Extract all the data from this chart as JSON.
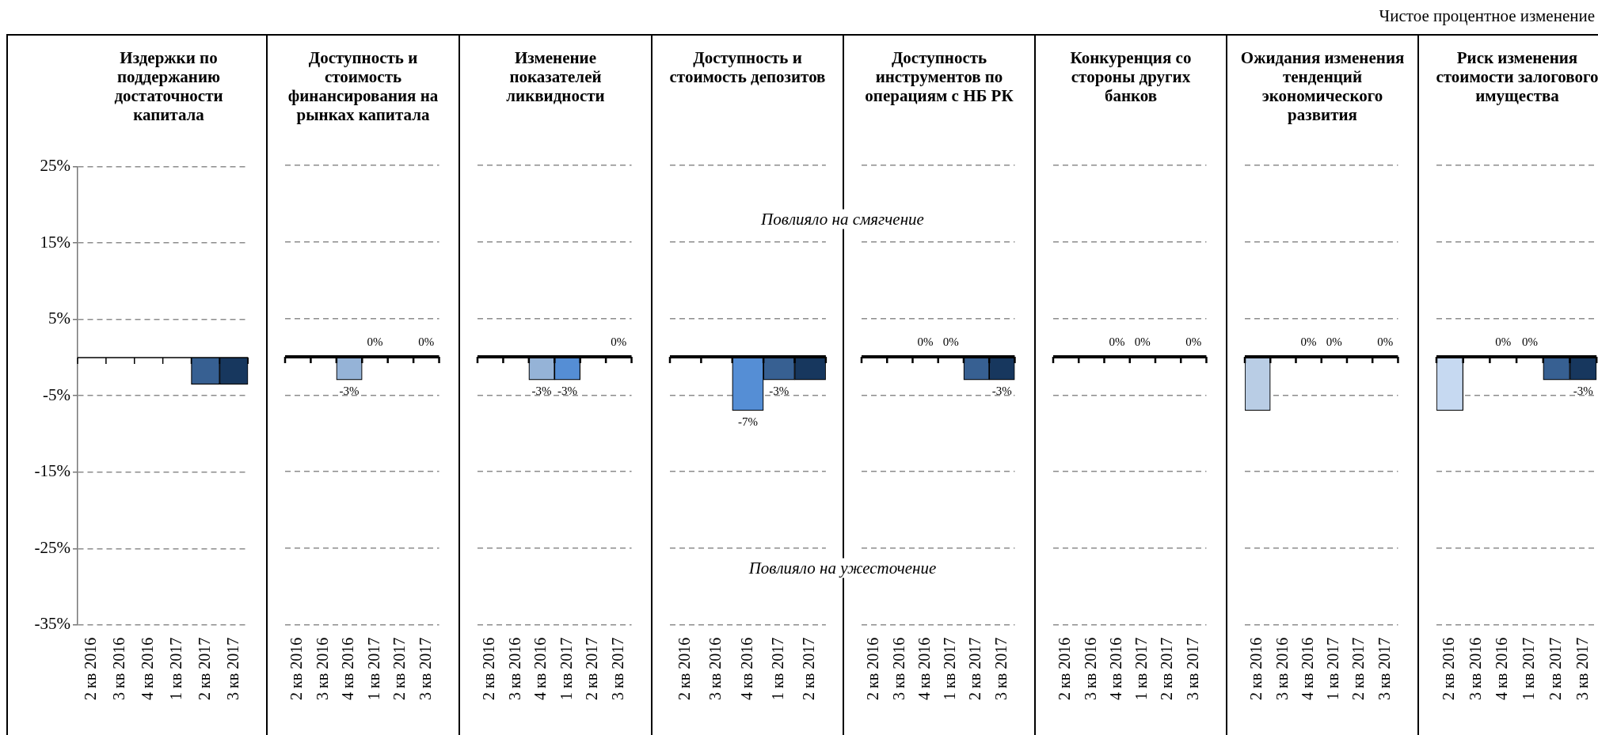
{
  "chart_data": [
    {
      "type": "bar",
      "title": "Издержки по поддержанию достаточности капитала",
      "categories": [
        "2 кв 2016",
        "3 кв 2016",
        "4 кв 2016",
        "1 кв 2017",
        "2 кв 2017",
        "3 кв 2017"
      ],
      "values": [
        0,
        0,
        0,
        0,
        -3.5,
        -3.5
      ],
      "colors": [
        "#c6d9f1",
        "#b9cde5",
        "#95b3d7",
        "#558ed5",
        "#376092",
        "#17375e"
      ],
      "ylim": [
        -35,
        25
      ],
      "yticks": [
        {
          "value": 25,
          "label": "25%"
        },
        {
          "value": 15,
          "label": "15%"
        },
        {
          "value": 5,
          "label": "5%"
        },
        {
          "value": -5,
          "label": "-5%"
        },
        {
          "value": -15,
          "label": "-15%"
        },
        {
          "value": -25,
          "label": "-25%"
        },
        {
          "value": -35,
          "label": "-35%"
        }
      ],
      "grid": "y"
    },
    {
      "type": "bar",
      "title": "Доступность и стоимость финансирования на рынках капитала",
      "categories": [
        "2 кв 2016",
        "3 кв 2016",
        "4 кв 2016",
        "1 кв 2017",
        "2 кв 2017",
        "3 кв 2017"
      ],
      "values": [
        0,
        0,
        -3,
        0,
        0,
        0
      ],
      "value_labels": [
        null,
        null,
        "-3%",
        "0%",
        null,
        "0%"
      ],
      "colors": [
        "#c6d9f1",
        "#b9cde5",
        "#95b3d7",
        "#558ed5",
        "#376092",
        "#17375e"
      ],
      "ylim": [
        -35,
        25
      ],
      "yticks": [
        25,
        15,
        5,
        -5,
        -15,
        -25,
        -35
      ],
      "grid": "y",
      "tick_labels": "x"
    },
    {
      "type": "bar",
      "title": "Изменение показателей ликвидности",
      "categories": [
        "2 кв 2016",
        "3 кв 2016",
        "4 кв 2016",
        "1 кв 2017",
        "2 кв 2017",
        "3 кв 2017"
      ],
      "values": [
        0,
        0,
        -3,
        -3,
        0,
        0
      ],
      "value_labels": [
        null,
        null,
        "-3%",
        "-3%",
        null,
        "0%"
      ],
      "colors": [
        "#c6d9f1",
        "#b9cde5",
        "#95b3d7",
        "#558ed5",
        "#376092",
        "#17375e"
      ],
      "ylim": [
        -35,
        25
      ],
      "yticks": [
        25,
        15,
        5,
        -5,
        -15,
        -25,
        -35
      ],
      "grid": "y",
      "tick_labels": "x"
    },
    {
      "type": "bar",
      "title": "Доступность и стоимость депозитов",
      "categories": [
        "2 кв 2016",
        "3 кв 2016",
        "4 кв 2016",
        "1 кв 2017",
        "2 кв 2017"
      ],
      "values": [
        0,
        0,
        -7,
        -3,
        -3
      ],
      "value_labels": [
        null,
        null,
        "-7%",
        "-3%",
        null
      ],
      "colors": [
        "#c6d9f1",
        "#95b3d7",
        "#558ed5",
        "#376092",
        "#17375e"
      ],
      "ylim": [
        -35,
        25
      ],
      "yticks": [
        25,
        15,
        5,
        -5,
        -15,
        -25,
        -35
      ],
      "grid": "y",
      "tick_labels": "x",
      "annotations": [
        "Повлияло на смягчение",
        "Повлияло на ужесточение"
      ]
    },
    {
      "type": "bar",
      "title": "Доступность инструментов по операциям с НБ РК",
      "categories": [
        "2 кв 2016",
        "3 кв 2016",
        "4 кв 2016",
        "1 кв 2017",
        "2 кв 2017",
        "3 кв 2017"
      ],
      "values": [
        0,
        0,
        0,
        0,
        -3,
        -3
      ],
      "value_labels": [
        null,
        null,
        "0%",
        "0%",
        null,
        "-3%"
      ],
      "colors": [
        "#c6d9f1",
        "#b9cde5",
        "#95b3d7",
        "#558ed5",
        "#376092",
        "#17375e"
      ],
      "ylim": [
        -35,
        25
      ],
      "yticks": [
        25,
        15,
        5,
        -5,
        -15,
        -25,
        -35
      ],
      "grid": "y",
      "tick_labels": "x"
    },
    {
      "type": "bar",
      "title": "Конкуренция со стороны других банков",
      "categories": [
        "2 кв 2016",
        "3 кв 2016",
        "4 кв 2016",
        "1 кв 2017",
        "2 кв 2017",
        "3 кв 2017"
      ],
      "values": [
        0,
        0,
        0,
        0,
        0,
        0
      ],
      "value_labels": [
        null,
        null,
        "0%",
        "0%",
        null,
        "0%"
      ],
      "colors": [
        "#c6d9f1",
        "#b9cde5",
        "#95b3d7",
        "#558ed5",
        "#376092",
        "#17375e"
      ],
      "ylim": [
        -35,
        25
      ],
      "yticks": [
        25,
        15,
        5,
        -5,
        -15,
        -25,
        -35
      ],
      "grid": "y",
      "tick_labels": "x"
    },
    {
      "type": "bar",
      "title": "Ожидания изменения тенденций экономического развития",
      "categories": [
        "2 кв 2016",
        "3 кв 2016",
        "4 кв 2016",
        "1 кв 2017",
        "2 кв 2017",
        "3 кв 2017"
      ],
      "values": [
        -7,
        0,
        0,
        0,
        0,
        0
      ],
      "value_labels": [
        null,
        null,
        "0%",
        "0%",
        null,
        "0%"
      ],
      "colors": [
        "#b9cde5",
        "#b9cde5",
        "#95b3d7",
        "#558ed5",
        "#376092",
        "#17375e"
      ],
      "ylim": [
        -35,
        25
      ],
      "yticks": [
        25,
        15,
        5,
        -5,
        -15,
        -25,
        -35
      ],
      "grid": "y",
      "tick_labels": "x"
    },
    {
      "type": "bar",
      "title": "Риск изменения стоимости залогового имущества",
      "categories": [
        "2 кв 2016",
        "3 кв 2016",
        "4 кв 2016",
        "1 кв 2017",
        "2 кв 2017",
        "3 кв 2017"
      ],
      "values": [
        -7,
        0,
        0,
        0,
        -3,
        -3
      ],
      "value_labels": [
        null,
        null,
        "0%",
        "0%",
        null,
        "-3%"
      ],
      "colors": [
        "#c6d9f1",
        "#b9cde5",
        "#95b3d7",
        "#558ed5",
        "#376092",
        "#17375e"
      ],
      "ylim": [
        -35,
        25
      ],
      "yticks": [
        25,
        15,
        5,
        -5,
        -15,
        -25,
        -35
      ],
      "grid": "y",
      "tick_labels": "x",
      "annotations": [
        "Чистое процентное изменение"
      ]
    }
  ]
}
